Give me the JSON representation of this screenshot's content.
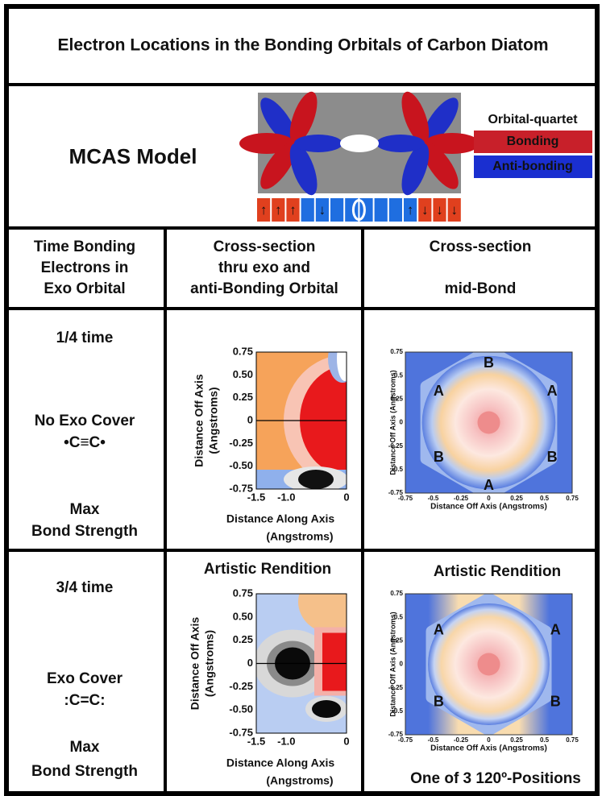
{
  "title": "Electron Locations in the Bonding Orbitals of Carbon Diatom",
  "model": {
    "label": "MCAS Model",
    "legend_title": "Orbital-quartet",
    "legend": [
      "Bonding",
      "Anti-bonding"
    ],
    "spin_arrows": {
      "left": [
        "↑",
        "↑",
        "↑"
      ],
      "inner_left": "↓",
      "inner_right": "↑",
      "right": [
        "↓",
        "↓",
        "↓"
      ]
    }
  },
  "headers": [
    [
      "Time Bonding",
      "Electrons in",
      "Exo Orbital"
    ],
    [
      "Cross-section",
      "thru exo and",
      "anti-Bonding Orbital"
    ],
    [
      "Cross-section",
      "mid-Bond"
    ]
  ],
  "rows": [
    {
      "time": "1/4 time",
      "cover": [
        "No Exo Cover",
        "•C≡C•"
      ],
      "strength": [
        "Max",
        "Bond Strength"
      ],
      "along_plot": {
        "y_label": [
          "Distance Off Axis",
          "(Angstroms)"
        ],
        "x_label": [
          "Distance Along Axis",
          "(Angstroms)"
        ],
        "x_ticks": [
          "-1.5",
          "-1.0",
          "0"
        ],
        "y_ticks": [
          "0.75",
          "0.50",
          "0.25",
          "0",
          "-0.25",
          "-0.50",
          "-0.75"
        ]
      },
      "mid_plot": {
        "y_label": "Distance Off Axis (Angstroms)",
        "x_label": "Distance Off Axis (Angstroms)",
        "x_ticks": [
          "-0.75",
          "-0.5",
          "-0.25",
          "0",
          "0.25",
          "0.5",
          "0.75"
        ],
        "y_ticks": [
          "0.75",
          "0.5",
          "0.25",
          "0",
          "-0.25",
          "-0.5",
          "-0.75"
        ],
        "regions": [
          "B",
          "A",
          "A",
          "B",
          "B",
          "A"
        ]
      }
    },
    {
      "time": "3/4 time",
      "cover": [
        "Exo Cover",
        ":C=C:"
      ],
      "strength": [
        "Max",
        "Bond Strength"
      ],
      "along_plot": {
        "title": "Artistic Rendition",
        "y_label": [
          "Distance Off Axis",
          "(Angstroms)"
        ],
        "x_label": [
          "Distance Along Axis",
          "(Angstroms)"
        ],
        "x_ticks": [
          "-1.5",
          "-1.0",
          "0"
        ],
        "y_ticks": [
          "0.75",
          "0.50",
          "0.25",
          "0",
          "-0.25",
          "-0.50",
          "-0.75"
        ]
      },
      "mid_plot": {
        "title": "Artistic Rendition",
        "y_label": "Distance Off Axis (Angstroms)",
        "x_label": "Distance Off Axis (Angstroms)",
        "x_ticks": [
          "-0.75",
          "-0.5",
          "-0.25",
          "0",
          "0.25",
          "0.5",
          "0.75"
        ],
        "y_ticks": [
          "0.75",
          "0.5",
          "0.25",
          "0",
          "-0.25",
          "-0.5",
          "-0.75"
        ],
        "regions": [
          "A",
          "A",
          "B",
          "B"
        ],
        "caption": "One of 3 120º-Positions"
      }
    }
  ]
}
